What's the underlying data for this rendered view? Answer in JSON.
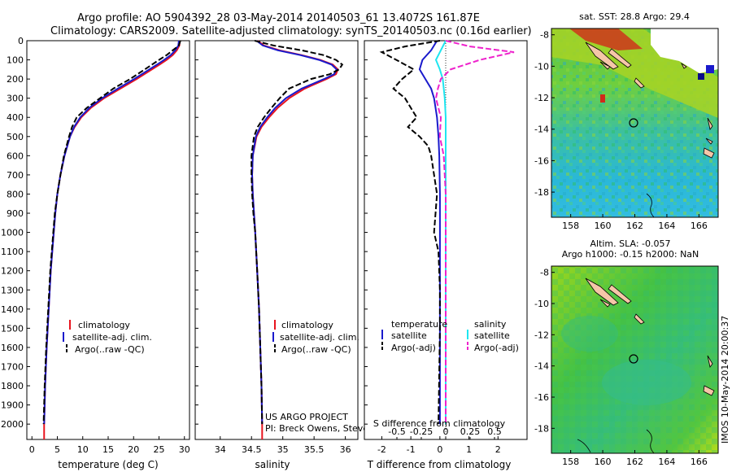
{
  "header": {
    "line1": "Argo profile: AO 5904392_28 03-May-2014 20140503_61 13.4072S 161.87E",
    "line2": "Climatology: CARS2009. Satellite-adjusted climatology: synTS_20140503.nc (0.16d earlier)"
  },
  "credits": {
    "project": "US ARGO PROJECT",
    "pi": "PI: Breck Owens, Steve Jayne, and P. E. Robbi"
  },
  "timestamp": "IMOS 10-May-2014 20:00:37",
  "colors": {
    "climatology": "#e8141e",
    "satellite": "#1a1acc",
    "argo": "#000000",
    "sat_salinity": "#1ee6f0",
    "argo_salinity": "#ee22cc"
  },
  "chart_data": [
    {
      "type": "line",
      "xlabel": "temperature (deg C)",
      "ylabel": "",
      "xlim": [
        -1,
        31
      ],
      "ylim": [
        2080,
        0
      ],
      "xticks": [
        0,
        5,
        10,
        15,
        20,
        25,
        30
      ],
      "yticks": [
        0,
        100,
        200,
        300,
        400,
        500,
        600,
        700,
        800,
        900,
        1000,
        1100,
        1200,
        1300,
        1400,
        1500,
        1600,
        1700,
        1800,
        1900,
        2000
      ],
      "legend": [
        "climatology",
        "satellite-adj. clim.",
        "Argo(..raw -QC)"
      ],
      "legend_position": "bottom-center",
      "series": [
        {
          "name": "climatology",
          "color": "#e8141e",
          "dash": false,
          "depth": [
            0,
            25,
            50,
            75,
            100,
            125,
            150,
            200,
            250,
            300,
            350,
            400,
            450,
            500,
            600,
            700,
            800,
            900,
            1000,
            1200,
            1400,
            1600,
            1800,
            2000
          ],
          "values": [
            29.1,
            29.0,
            28.5,
            27.7,
            26.5,
            25.1,
            23.6,
            20.6,
            17.4,
            14.2,
            11.6,
            9.7,
            8.4,
            7.5,
            6.4,
            5.6,
            5.0,
            4.6,
            4.3,
            3.7,
            3.3,
            2.9,
            2.6,
            2.4
          ]
        },
        {
          "name": "satellite-adj. clim.",
          "color": "#1a1acc",
          "dash": false,
          "depth": [
            0,
            25,
            50,
            75,
            100,
            125,
            150,
            200,
            250,
            300,
            350,
            400,
            450,
            500,
            600,
            700,
            800,
            900,
            1000,
            1200,
            1400,
            1600,
            1800,
            2000
          ],
          "values": [
            28.9,
            28.8,
            28.2,
            27.3,
            26.0,
            24.6,
            23.1,
            20.1,
            16.9,
            13.8,
            11.3,
            9.5,
            8.3,
            7.5,
            6.4,
            5.6,
            5.0,
            4.6,
            4.3,
            3.7,
            3.3,
            2.9,
            2.6,
            2.4
          ]
        },
        {
          "name": "Argo(..raw -QC)",
          "color": "#000000",
          "dash": true,
          "depth": [
            0,
            25,
            50,
            75,
            100,
            125,
            150,
            200,
            250,
            300,
            350,
            400,
            450,
            500,
            600,
            700,
            800,
            900,
            1000,
            1200,
            1400,
            1600,
            1800,
            2000
          ],
          "values": [
            29.2,
            28.9,
            27.7,
            26.5,
            25.0,
            23.6,
            22.2,
            19.3,
            16.0,
            13.4,
            10.8,
            8.8,
            7.9,
            7.3,
            6.3,
            5.6,
            5.0,
            4.5,
            4.2,
            3.6,
            3.2,
            2.8,
            2.5,
            2.3
          ]
        }
      ]
    },
    {
      "type": "line",
      "xlabel": "salinity",
      "ylabel": "",
      "xlim": [
        33.6,
        36.2
      ],
      "ylim": [
        2080,
        0
      ],
      "xticks": [
        34,
        34.5,
        35,
        35.5,
        36
      ],
      "xtick_labels": [
        "34",
        "34.5",
        "35",
        "35.5",
        "36"
      ],
      "legend": [
        "climatology",
        "satellite-adj. clim.",
        "Argo(..raw -QC)"
      ],
      "legend_position": "bottom-right",
      "series": [
        {
          "name": "climatology",
          "color": "#e8141e",
          "dash": false,
          "depth": [
            0,
            25,
            50,
            75,
            100,
            125,
            150,
            175,
            200,
            250,
            300,
            350,
            400,
            450,
            500,
            600,
            700,
            800,
            900,
            1000,
            1200,
            1400,
            1600,
            1800,
            2000
          ],
          "values": [
            34.6,
            34.7,
            34.95,
            35.3,
            35.6,
            35.8,
            35.88,
            35.85,
            35.7,
            35.35,
            35.1,
            34.92,
            34.78,
            34.66,
            34.58,
            34.52,
            34.51,
            34.52,
            34.54,
            34.56,
            34.59,
            34.62,
            34.64,
            34.66,
            34.67
          ]
        },
        {
          "name": "satellite-adj. clim.",
          "color": "#1a1acc",
          "dash": false,
          "depth": [
            0,
            25,
            50,
            75,
            100,
            125,
            150,
            175,
            200,
            250,
            300,
            350,
            400,
            450,
            500,
            600,
            700,
            800,
            900,
            1000,
            1200,
            1400,
            1600,
            1800,
            2000
          ],
          "values": [
            34.58,
            34.68,
            34.92,
            35.28,
            35.58,
            35.78,
            35.86,
            35.82,
            35.66,
            35.3,
            35.05,
            34.88,
            34.75,
            34.64,
            34.57,
            34.52,
            34.51,
            34.52,
            34.54,
            34.56,
            34.59,
            34.62,
            34.64,
            34.66,
            34.67
          ]
        },
        {
          "name": "Argo(..raw -QC)",
          "color": "#000000",
          "dash": true,
          "depth": [
            0,
            25,
            50,
            75,
            100,
            125,
            150,
            175,
            200,
            250,
            300,
            350,
            400,
            450,
            500,
            600,
            700,
            800,
            900,
            1000,
            1200,
            1400,
            1600,
            1800,
            2000
          ],
          "values": [
            34.55,
            34.85,
            35.3,
            35.65,
            35.85,
            35.95,
            35.9,
            35.75,
            35.45,
            35.1,
            34.95,
            34.82,
            34.7,
            34.6,
            34.54,
            34.5,
            34.5,
            34.51,
            34.53,
            34.56,
            34.59,
            34.62,
            34.64,
            34.66,
            34.67
          ]
        }
      ]
    },
    {
      "type": "line",
      "xlabel": "T difference from climatology",
      "title_bottom": "S difference from climatology",
      "ylabel": "",
      "xlim": [
        -2.6,
        3.0
      ],
      "ylim": [
        2080,
        0
      ],
      "xticks": [
        -2,
        -1,
        0,
        1,
        2
      ],
      "top_ticks": [
        -0.5,
        -0.25,
        0,
        0.25,
        0.5
      ],
      "top_tick_labels": [
        "-0.5",
        "-0.25",
        "0",
        "0.25",
        "0.5"
      ],
      "legend": [
        "temperature",
        "satellite",
        "Argo(-adj)",
        "salinity",
        "satellite",
        "Argo(-adj)"
      ],
      "legend_position": "bottom-center",
      "series": [
        {
          "name": "temperature satellite",
          "color": "#1a1acc",
          "dash": false,
          "depth": [
            0,
            50,
            100,
            150,
            200,
            250,
            300,
            400,
            500,
            600,
            800,
            1000,
            1500,
            2000
          ],
          "values": [
            -0.1,
            -0.3,
            -0.6,
            -0.7,
            -0.5,
            -0.3,
            -0.2,
            -0.1,
            -0.05,
            -0.02,
            0,
            0,
            0,
            0
          ]
        },
        {
          "name": "temperature Argo(-adj)",
          "color": "#000000",
          "dash": true,
          "depth": [
            0,
            30,
            60,
            100,
            150,
            200,
            250,
            300,
            350,
            400,
            450,
            500,
            550,
            600,
            700,
            800,
            1000,
            1100,
            1300,
            1500,
            2000
          ],
          "values": [
            0,
            -1.2,
            -2.0,
            -1.5,
            -0.9,
            -1.3,
            -1.6,
            -1.2,
            -1.0,
            -0.8,
            -1.1,
            -0.7,
            -0.4,
            -0.3,
            -0.2,
            -0.1,
            -0.2,
            -0.05,
            0,
            0,
            -0.05
          ]
        },
        {
          "name": "salinity satellite",
          "color": "#1ee6f0",
          "dash": false,
          "depth": [
            0,
            50,
            100,
            150,
            200,
            300,
            400,
            600,
            1000,
            2000
          ],
          "values": [
            0.0,
            -0.05,
            -0.1,
            -0.06,
            -0.03,
            -0.01,
            0,
            0,
            0,
            0
          ]
        },
        {
          "name": "salinity Argo(-adj)",
          "color": "#ee22cc",
          "dash": true,
          "depth": [
            0,
            30,
            60,
            100,
            150,
            200,
            250,
            300,
            400,
            500,
            600,
            800,
            1000,
            2000
          ],
          "values": [
            0.0,
            0.25,
            0.7,
            0.35,
            0.05,
            -0.05,
            -0.08,
            -0.1,
            -0.05,
            -0.06,
            -0.02,
            0,
            0,
            0
          ]
        }
      ]
    },
    {
      "type": "heatmap",
      "title": "sat. SST: 28.8 Argo: 29.4",
      "xticks": [
        158,
        160,
        162,
        164,
        166
      ],
      "yticks": [
        -8,
        -10,
        -12,
        -14,
        -16,
        -18
      ],
      "xlim": [
        156.8,
        167.2
      ],
      "ylim": [
        -19.6,
        -7.6
      ],
      "argo_position": [
        161.87,
        -13.4072
      ]
    },
    {
      "type": "heatmap",
      "title": "Altim. SLA: -0.057",
      "subtitle": "Argo h1000: -0.15 h2000: NaN",
      "xticks": [
        158,
        160,
        162,
        164,
        166
      ],
      "yticks": [
        -8,
        -10,
        -12,
        -14,
        -16,
        -18
      ],
      "xlim": [
        156.8,
        167.2
      ],
      "ylim": [
        -19.6,
        -7.6
      ],
      "argo_position": [
        161.87,
        -13.4072
      ]
    }
  ]
}
